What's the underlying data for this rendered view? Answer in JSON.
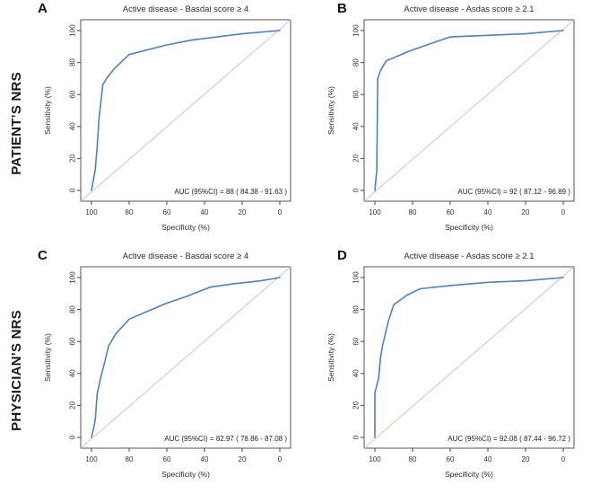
{
  "figure": {
    "description": "Four ROC curve panels (2 x 2) for active disease classification",
    "row_header_left": true
  },
  "rows": [
    {
      "label": "PATIENT’S NRS"
    },
    {
      "label": "PHYSICIAN’S NRS"
    }
  ],
  "style": {
    "curve_color": "#4e81bd",
    "diagonal_color": "#c9c9c9",
    "box_color": "#555555",
    "tick_color": "#444444",
    "text_color": "#2b2b2b",
    "background": "#ffffff"
  },
  "chart_data": [
    {
      "type": "line",
      "panel": "A",
      "row": "PATIENT’S NRS",
      "title": "Active disease - Basdai score ≥ 4",
      "xlabel": "Specificity (%)",
      "ylabel": "Sensitivity (%)",
      "x_ticks": [
        100,
        80,
        60,
        40,
        20,
        0
      ],
      "y_ticks": [
        0,
        20,
        40,
        60,
        80,
        100
      ],
      "x_axis_reversed": true,
      "xlim": [
        100,
        0
      ],
      "ylim": [
        0,
        100
      ],
      "grid": false,
      "diagonal_reference": true,
      "auc": 88,
      "auc_ci": [
        84.38,
        91.63
      ],
      "auc_label": "AUC (95%CI) = 88 ( 84.38 - 91.63 )",
      "roc_points": [
        [
          100,
          0
        ],
        [
          98,
          13
        ],
        [
          97,
          27
        ],
        [
          96,
          45
        ],
        [
          94,
          66
        ],
        [
          92,
          70
        ],
        [
          88,
          76
        ],
        [
          80,
          85
        ],
        [
          60,
          91
        ],
        [
          47,
          94
        ],
        [
          20,
          98
        ],
        [
          0,
          100
        ]
      ]
    },
    {
      "type": "line",
      "panel": "B",
      "row": "PATIENT’S NRS",
      "title": "Active disease - Asdas score ≥ 2.1",
      "xlabel": "Specificity (%)",
      "ylabel": "Sensitivity (%)",
      "x_ticks": [
        100,
        80,
        60,
        40,
        20,
        0
      ],
      "y_ticks": [
        0,
        20,
        40,
        60,
        80,
        100
      ],
      "x_axis_reversed": true,
      "xlim": [
        100,
        0
      ],
      "ylim": [
        0,
        100
      ],
      "grid": false,
      "diagonal_reference": true,
      "auc": 92,
      "auc_ci": [
        87.12,
        96.89
      ],
      "auc_label": "AUC (95%CI) = 92 ( 87.12 - 96.89 )",
      "roc_points": [
        [
          100,
          0
        ],
        [
          99.5,
          6
        ],
        [
          99,
          12
        ],
        [
          98.5,
          70
        ],
        [
          97,
          75
        ],
        [
          94,
          81
        ],
        [
          88,
          84
        ],
        [
          82,
          87
        ],
        [
          70,
          92
        ],
        [
          60,
          96
        ],
        [
          40,
          97
        ],
        [
          20,
          98
        ],
        [
          0,
          100
        ]
      ]
    },
    {
      "type": "line",
      "panel": "C",
      "row": "PHYSICIAN’S NRS",
      "title": "Active disease - Basdai score ≥ 4",
      "xlabel": "Specificity (%)",
      "ylabel": "Sensitivity (%)",
      "x_ticks": [
        100,
        80,
        60,
        40,
        20,
        0
      ],
      "y_ticks": [
        0,
        20,
        40,
        60,
        80,
        100
      ],
      "x_axis_reversed": true,
      "xlim": [
        100,
        0
      ],
      "ylim": [
        0,
        100
      ],
      "grid": false,
      "diagonal_reference": true,
      "auc": 82.97,
      "auc_ci": [
        78.86,
        87.08
      ],
      "auc_label": "AUC (95%CI) = 82.97 ( 78.86 - 87.08 )",
      "roc_points": [
        [
          100,
          0
        ],
        [
          99,
          5
        ],
        [
          98,
          11
        ],
        [
          97,
          27
        ],
        [
          95,
          38
        ],
        [
          93,
          47
        ],
        [
          91,
          57
        ],
        [
          87,
          65
        ],
        [
          83,
          70
        ],
        [
          80,
          74
        ],
        [
          70,
          79
        ],
        [
          60,
          84
        ],
        [
          50,
          88
        ],
        [
          37,
          94
        ],
        [
          25,
          96
        ],
        [
          10,
          98
        ],
        [
          0,
          100
        ]
      ]
    },
    {
      "type": "line",
      "panel": "D",
      "row": "PHYSICIAN’S NRS",
      "title": "Active disease - Asdas score ≥ 2.1",
      "xlabel": "Specificity (%)",
      "ylabel": "Sensitivity (%)",
      "x_ticks": [
        100,
        80,
        60,
        40,
        20,
        0
      ],
      "y_ticks": [
        0,
        20,
        40,
        60,
        80,
        100
      ],
      "x_axis_reversed": true,
      "xlim": [
        100,
        0
      ],
      "ylim": [
        0,
        100
      ],
      "grid": false,
      "diagonal_reference": true,
      "auc": 92.08,
      "auc_ci": [
        87.44,
        96.72
      ],
      "auc_label": "AUC (95%CI) = 92.08 ( 87.44 - 96.72 )",
      "roc_points": [
        [
          100,
          0
        ],
        [
          100,
          28
        ],
        [
          98,
          37
        ],
        [
          97,
          50
        ],
        [
          96,
          57
        ],
        [
          93,
          72
        ],
        [
          90,
          83
        ],
        [
          83,
          89
        ],
        [
          76,
          93
        ],
        [
          60,
          95
        ],
        [
          40,
          97
        ],
        [
          20,
          98
        ],
        [
          0,
          100
        ]
      ]
    }
  ]
}
